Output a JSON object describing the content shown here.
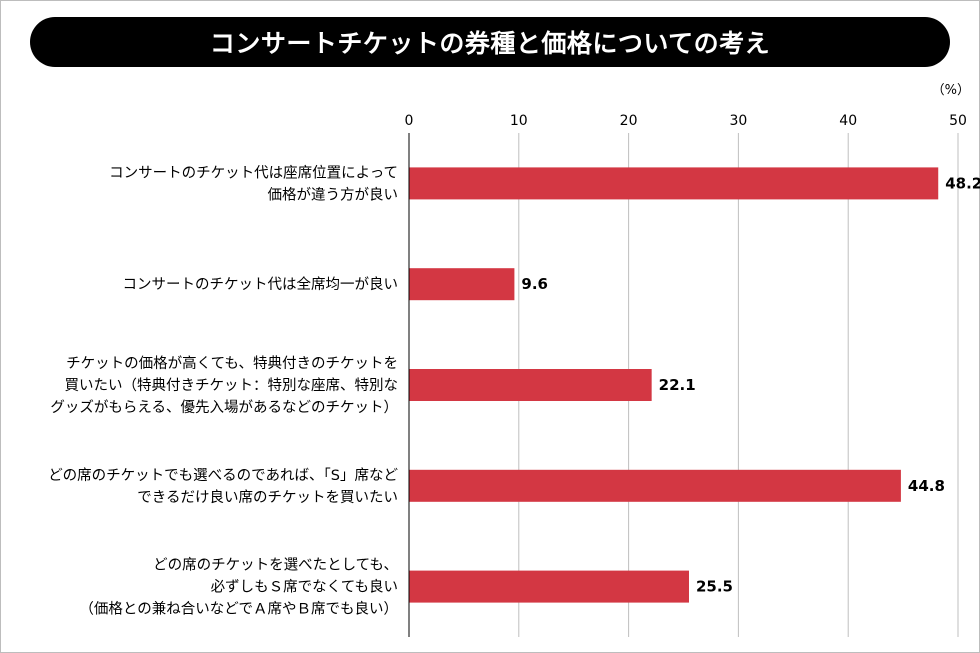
{
  "title": "コンサートチケットの券種と価格についての考え",
  "colors": {
    "bar": "#d33743",
    "title_bg": "#000000",
    "title_text": "#ffffff",
    "grid": "#bfbfbf"
  },
  "chart_data": {
    "type": "bar",
    "orientation": "horizontal",
    "unit": "（%）",
    "xlim": [
      0,
      50
    ],
    "ticks": [
      0,
      10,
      20,
      30,
      40,
      50
    ],
    "ticks_position": "top",
    "grid": true,
    "categories": [
      [
        "コンサートのチケット代は座席位置によって",
        "価格が違う方が良い"
      ],
      [
        "コンサートのチケット代は全席均一が良い"
      ],
      [
        "チケットの価格が高くても、特典付きのチケットを",
        "買いたい（特典付きチケット：特別な座席、特別な",
        "グッズがもらえる、優先入場があるなどのチケット）"
      ],
      [
        "どの席のチケットでも選べるのであれば、「S」席など",
        "できるだけ良い席のチケットを買いたい"
      ],
      [
        "どの席のチケットを選べたとしても、",
        "必ずしもＳ席でなくても良い",
        "（価格との兼ね合いなどでＡ席やＢ席でも良い）"
      ]
    ],
    "values": [
      48.2,
      9.6,
      22.1,
      44.8,
      25.5
    ],
    "value_labels": [
      "48.2",
      "9.6",
      "22.1",
      "44.8",
      "25.5"
    ]
  }
}
